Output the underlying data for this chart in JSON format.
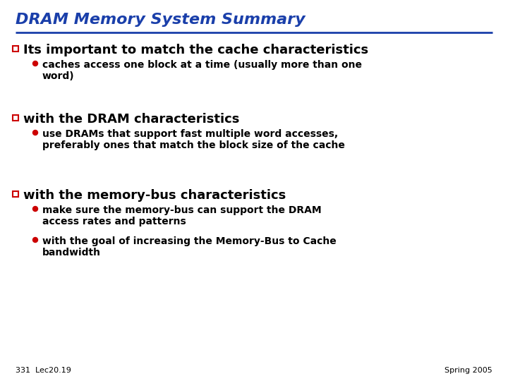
{
  "title": "DRAM Memory System Summary",
  "title_color": "#1a3faa",
  "title_underline_color": "#1a3faa",
  "background_color": "#ffffff",
  "bullet1_header": "Its important to match the cache characteristics",
  "bullet1_sub": [
    "caches access one block at a time (usually more than one\nword)"
  ],
  "bullet2_header": "with the DRAM characteristics",
  "bullet2_sub": [
    "use DRAMs that support fast multiple word accesses,\npreferably ones that match the block size of the cache"
  ],
  "bullet3_header": "with the memory-bus characteristics",
  "bullet3_sub": [
    "make sure the memory-bus can support the DRAM\naccess rates and patterns",
    "with the goal of increasing the Memory-Bus to Cache\nbandwidth"
  ],
  "footer_left": "331  Lec20.19",
  "footer_right": "Spring 2005",
  "sq_bullet_color": "#cc0000",
  "circle_bullet_color": "#cc0000",
  "header_color": "#000000",
  "sub_color": "#000000",
  "footer_color": "#000000",
  "title_fontsize": 16,
  "header_fontsize": 13,
  "sub_fontsize": 10,
  "footer_fontsize": 8
}
